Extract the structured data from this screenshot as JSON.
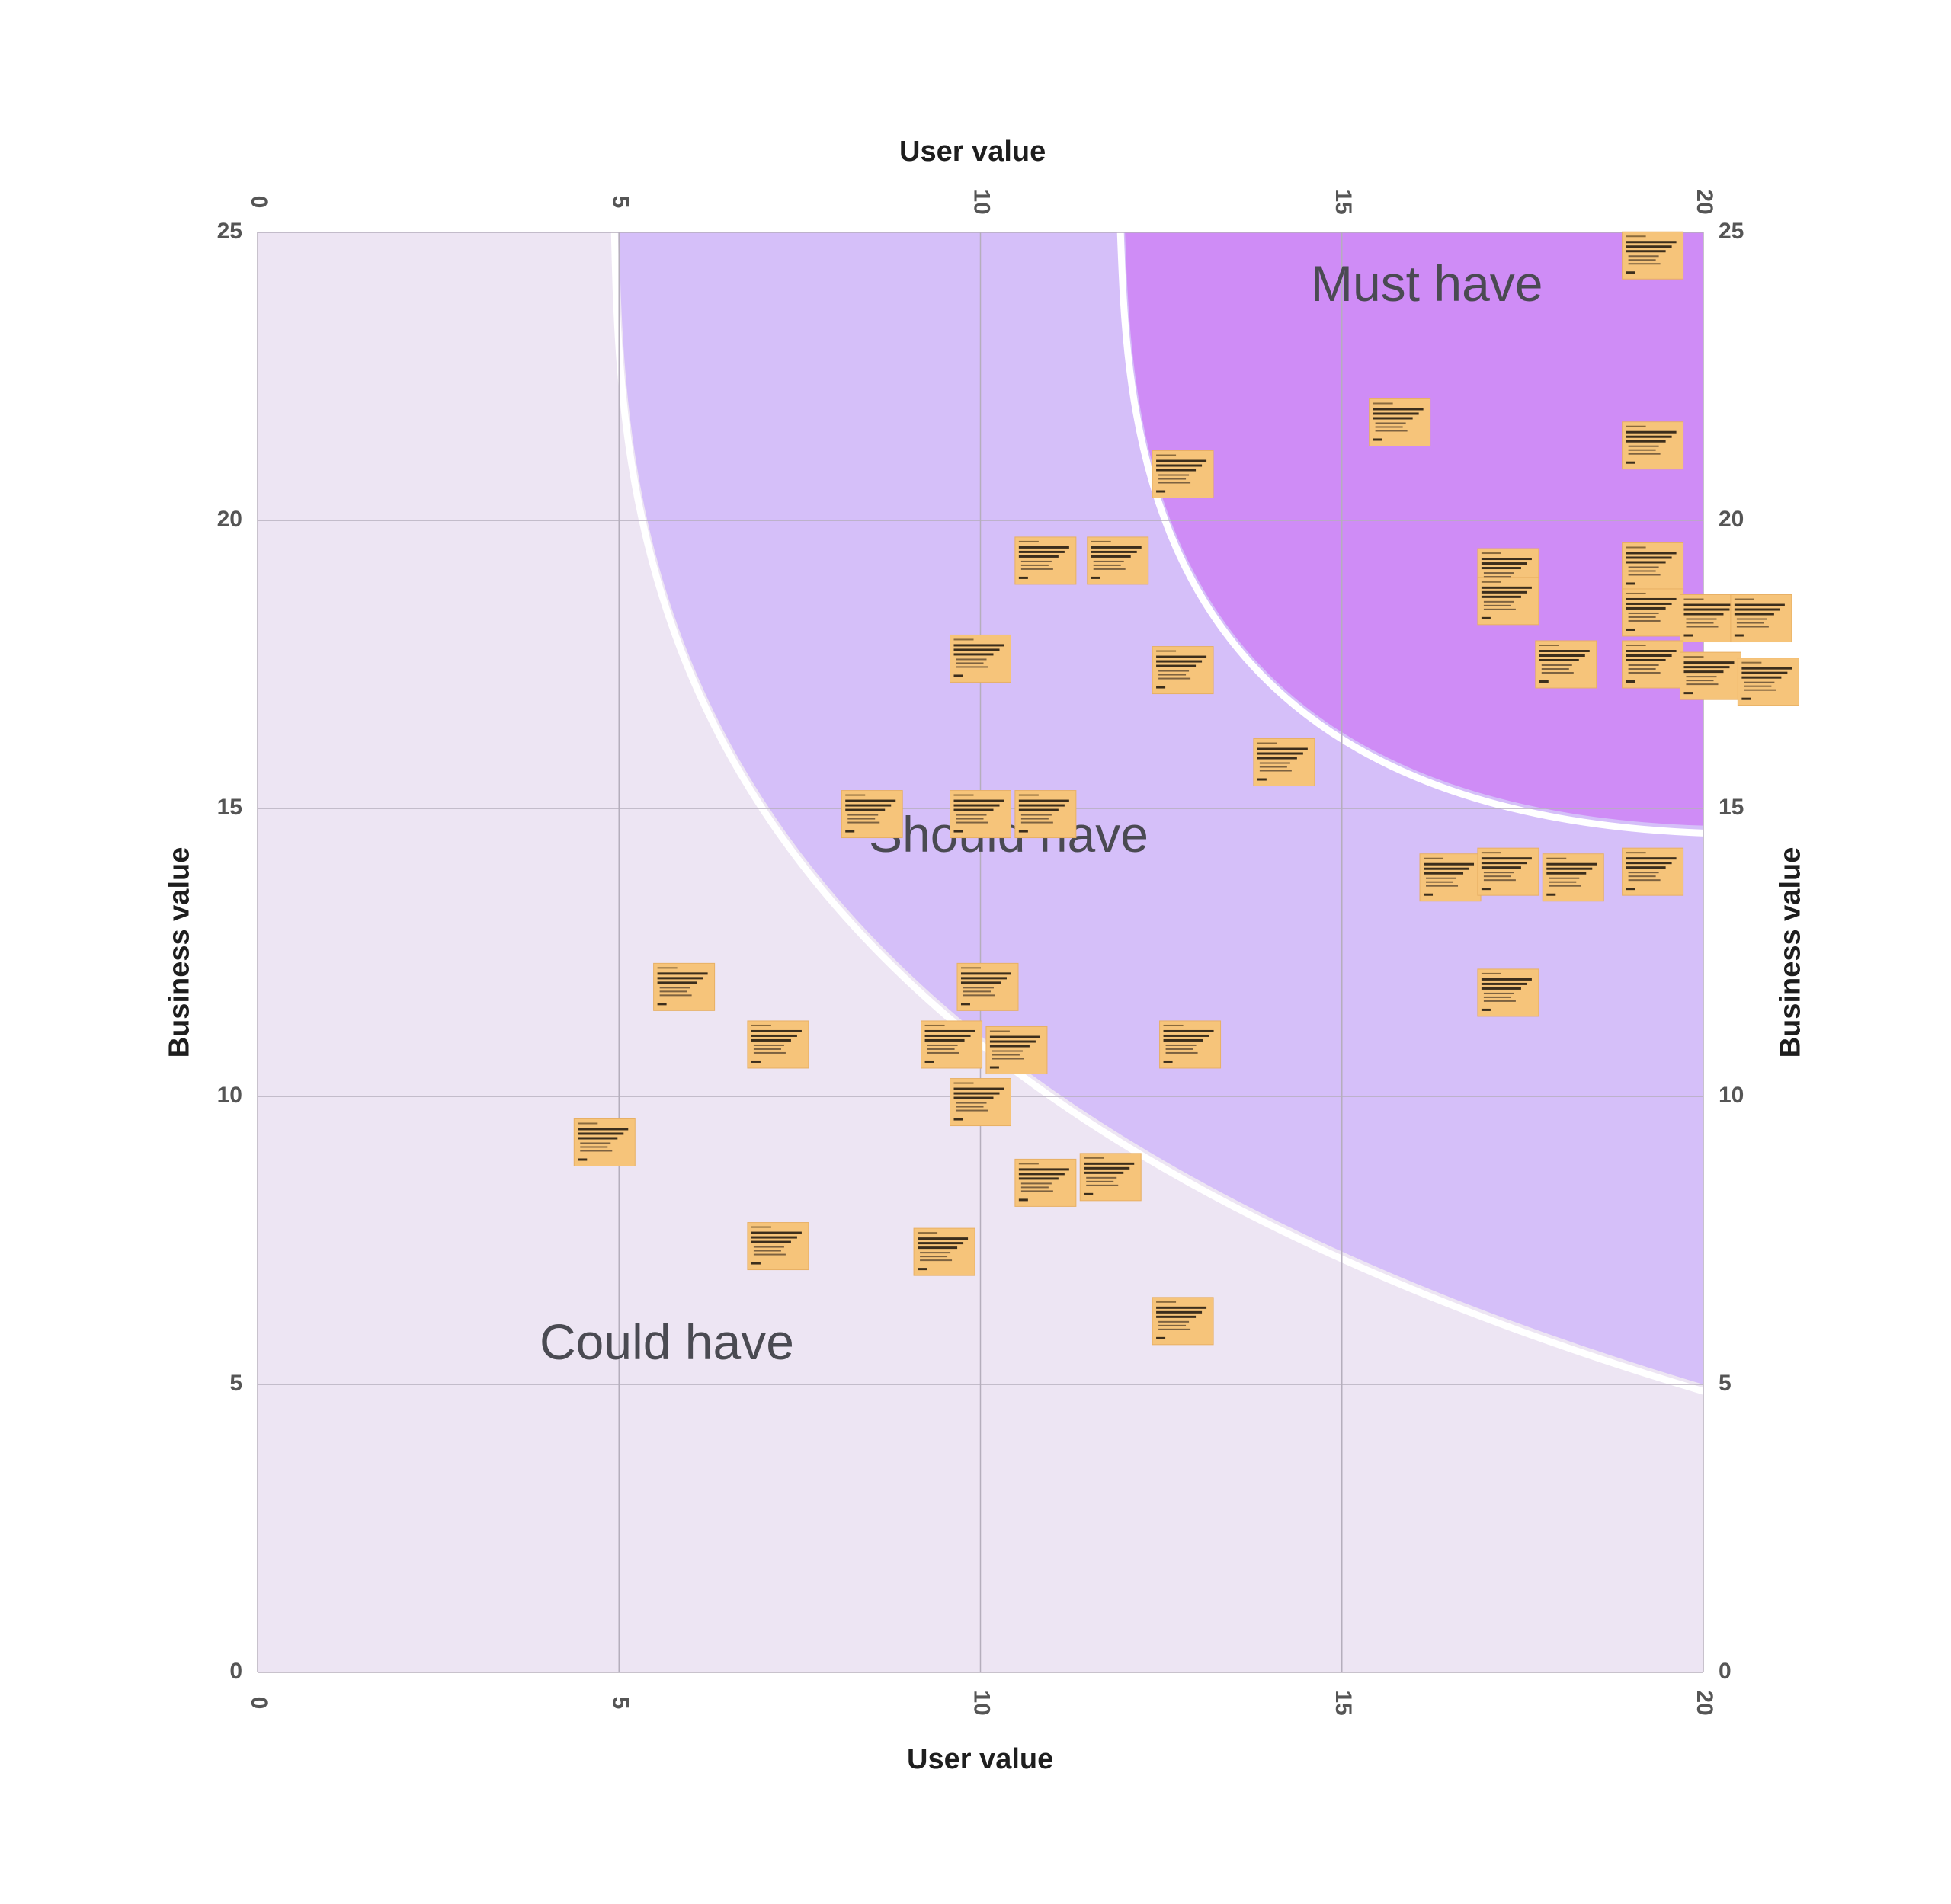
{
  "chart_data": {
    "type": "scatter",
    "x_axis": {
      "label": "User value",
      "range": [
        0,
        20
      ],
      "ticks": [
        "0",
        "5",
        "10",
        "15",
        "20"
      ]
    },
    "y_axis": {
      "label": "Business value",
      "range": [
        0,
        25
      ],
      "ticks": [
        "0",
        "5",
        "10",
        "15",
        "20",
        "25"
      ]
    },
    "grid": true,
    "zones": [
      {
        "label": "Must have",
        "color": "#cf8cf6"
      },
      {
        "label": "Should have",
        "color": "#d5bff9"
      },
      {
        "label": "Could have",
        "color": "#ede5f3"
      }
    ],
    "note_color": "#f7c77b",
    "notes": [
      {
        "x": 19.3,
        "y": 24.6
      },
      {
        "x": 15.8,
        "y": 21.7
      },
      {
        "x": 12.8,
        "y": 20.8
      },
      {
        "x": 19.3,
        "y": 21.3
      },
      {
        "x": 10.9,
        "y": 19.3
      },
      {
        "x": 11.9,
        "y": 19.3
      },
      {
        "x": 17.3,
        "y": 19.1
      },
      {
        "x": 19.3,
        "y": 19.2
      },
      {
        "x": 17.3,
        "y": 18.6
      },
      {
        "x": 19.3,
        "y": 18.4
      },
      {
        "x": 20.1,
        "y": 18.3
      },
      {
        "x": 20.8,
        "y": 18.3
      },
      {
        "x": 10.0,
        "y": 17.6
      },
      {
        "x": 12.8,
        "y": 17.4
      },
      {
        "x": 18.1,
        "y": 17.5
      },
      {
        "x": 19.3,
        "y": 17.5
      },
      {
        "x": 20.1,
        "y": 17.3
      },
      {
        "x": 20.9,
        "y": 17.2
      },
      {
        "x": 14.2,
        "y": 15.8
      },
      {
        "x": 8.5,
        "y": 14.9
      },
      {
        "x": 10.0,
        "y": 14.9
      },
      {
        "x": 10.9,
        "y": 14.9
      },
      {
        "x": 16.5,
        "y": 13.8
      },
      {
        "x": 17.3,
        "y": 13.9
      },
      {
        "x": 18.2,
        "y": 13.8
      },
      {
        "x": 19.3,
        "y": 13.9
      },
      {
        "x": 5.9,
        "y": 11.9
      },
      {
        "x": 10.1,
        "y": 11.9
      },
      {
        "x": 17.3,
        "y": 11.8
      },
      {
        "x": 7.2,
        "y": 10.9
      },
      {
        "x": 9.6,
        "y": 10.9
      },
      {
        "x": 10.5,
        "y": 10.8
      },
      {
        "x": 12.9,
        "y": 10.9
      },
      {
        "x": 10.0,
        "y": 9.9
      },
      {
        "x": 4.8,
        "y": 9.2
      },
      {
        "x": 10.9,
        "y": 8.5
      },
      {
        "x": 11.8,
        "y": 8.6
      },
      {
        "x": 7.2,
        "y": 7.4
      },
      {
        "x": 9.5,
        "y": 7.3
      },
      {
        "x": 12.8,
        "y": 6.1
      }
    ]
  }
}
